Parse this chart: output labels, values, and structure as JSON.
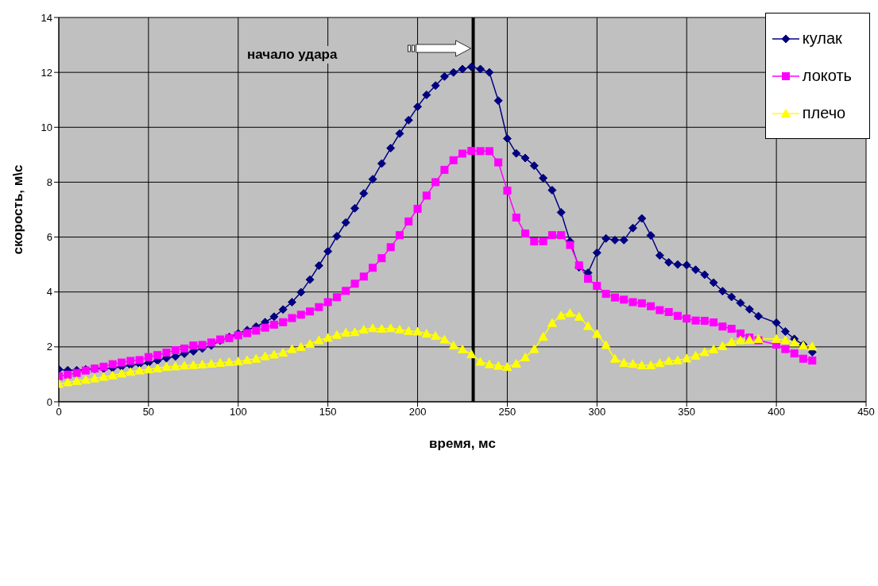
{
  "chart_data": {
    "type": "line",
    "xlabel": "время, мс",
    "ylabel": "скорость, м\\с",
    "x": [
      0,
      5,
      10,
      15,
      20,
      25,
      30,
      35,
      40,
      45,
      50,
      55,
      60,
      65,
      70,
      75,
      80,
      85,
      90,
      95,
      100,
      105,
      110,
      115,
      120,
      125,
      130,
      135,
      140,
      145,
      150,
      155,
      160,
      165,
      170,
      175,
      180,
      185,
      190,
      195,
      200,
      205,
      210,
      215,
      220,
      225,
      230,
      235,
      240,
      245,
      250,
      255,
      260,
      265,
      270,
      275,
      280,
      285,
      290,
      295,
      300,
      305,
      310,
      315,
      320,
      325,
      330,
      335,
      340,
      345,
      350,
      355,
      360,
      365,
      370,
      375,
      380,
      385,
      390,
      395,
      400,
      405,
      410,
      415,
      420
    ],
    "series": [
      {
        "name": "кулак",
        "color": "#000080",
        "marker": "diamond",
        "values": [
          1.18,
          1.15,
          1.15,
          1.18,
          1.2,
          1.21,
          1.23,
          1.28,
          1.33,
          1.37,
          1.42,
          1.5,
          1.59,
          1.65,
          1.75,
          1.84,
          1.94,
          2.05,
          2.23,
          2.36,
          2.49,
          2.61,
          2.74,
          2.9,
          3.1,
          3.36,
          3.63,
          3.99,
          4.45,
          4.96,
          5.48,
          6.03,
          6.53,
          7.05,
          7.59,
          8.11,
          8.68,
          9.24,
          9.77,
          10.26,
          10.75,
          11.18,
          11.52,
          11.85,
          12.0,
          12.12,
          12.2,
          12.12,
          12.0,
          10.97,
          9.59,
          9.05,
          8.88,
          8.6,
          8.15,
          7.71,
          6.9,
          5.84,
          4.9,
          4.7,
          5.43,
          5.95,
          5.89,
          5.89,
          6.33,
          6.68,
          6.06,
          5.33,
          5.08,
          5.0,
          4.98,
          4.81,
          4.63,
          4.34,
          4.03,
          3.82,
          3.6,
          3.37,
          3.12,
          null,
          2.88,
          2.56,
          2.29,
          2.08,
          1.81
        ]
      },
      {
        "name": "локоть",
        "color": "#ff00ff",
        "marker": "square",
        "values": [
          0.93,
          0.99,
          1.05,
          1.14,
          1.21,
          1.28,
          1.37,
          1.43,
          1.49,
          1.52,
          1.63,
          1.7,
          1.79,
          1.88,
          1.94,
          2.05,
          2.07,
          2.16,
          2.27,
          2.32,
          2.42,
          2.5,
          2.59,
          2.7,
          2.81,
          2.9,
          3.05,
          3.17,
          3.29,
          3.45,
          3.63,
          3.81,
          4.04,
          4.3,
          4.56,
          4.88,
          5.23,
          5.63,
          6.07,
          6.57,
          7.03,
          7.51,
          8.0,
          8.45,
          8.8,
          9.04,
          9.14,
          9.13,
          9.13,
          8.72,
          7.69,
          6.71,
          6.13,
          5.84,
          5.85,
          6.07,
          6.07,
          5.71,
          4.97,
          4.48,
          4.22,
          3.93,
          3.8,
          3.72,
          3.63,
          3.59,
          3.48,
          3.34,
          3.27,
          3.13,
          3.03,
          2.96,
          2.95,
          2.89,
          2.74,
          2.66,
          2.49,
          2.34,
          2.24,
          null,
          2.08,
          1.92,
          1.76,
          1.57,
          1.5
        ]
      },
      {
        "name": "плечо",
        "color": "#ffff00",
        "marker": "triangle",
        "values": [
          0.65,
          0.71,
          0.76,
          0.8,
          0.85,
          0.91,
          0.96,
          1.03,
          1.09,
          1.14,
          1.18,
          1.22,
          1.27,
          1.29,
          1.32,
          1.34,
          1.36,
          1.39,
          1.42,
          1.45,
          1.47,
          1.52,
          1.57,
          1.66,
          1.72,
          1.79,
          1.92,
          2.0,
          2.11,
          2.24,
          2.33,
          2.44,
          2.52,
          2.54,
          2.63,
          2.68,
          2.66,
          2.68,
          2.63,
          2.58,
          2.56,
          2.48,
          2.4,
          2.27,
          2.05,
          1.91,
          1.73,
          1.46,
          1.37,
          1.31,
          1.27,
          1.39,
          1.62,
          1.92,
          2.37,
          2.87,
          3.14,
          3.23,
          3.1,
          2.76,
          2.47,
          2.07,
          1.57,
          1.42,
          1.38,
          1.33,
          1.33,
          1.41,
          1.49,
          1.51,
          1.58,
          1.68,
          1.81,
          1.91,
          2.03,
          2.18,
          2.24,
          2.26,
          2.29,
          null,
          2.29,
          2.24,
          2.16,
          2.05,
          2.02
        ]
      }
    ],
    "xlim": [
      0,
      450
    ],
    "xticks": [
      0,
      50,
      100,
      150,
      200,
      250,
      300,
      350,
      400,
      450
    ],
    "ylim": [
      0,
      14
    ],
    "yticks": [
      0,
      2,
      4,
      6,
      8,
      10,
      12,
      14
    ],
    "ref_lines": [
      {
        "axis": "x",
        "value": 231,
        "color": "#000000"
      }
    ],
    "annotations": [
      "начало удара"
    ],
    "grid": true,
    "legend": "top right",
    "line_style": "solid"
  }
}
